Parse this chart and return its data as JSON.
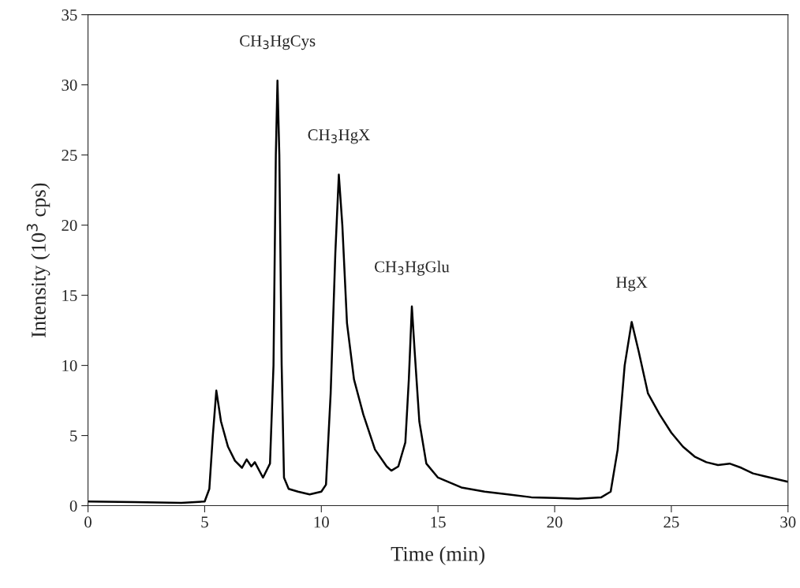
{
  "chart_data": {
    "type": "line",
    "xlabel": "Time (min)",
    "ylabel": "Intensity (10$^{3}$ cps)",
    "x": [
      0,
      2,
      4,
      5.0,
      5.2,
      5.35,
      5.5,
      5.7,
      6.0,
      6.3,
      6.6,
      6.8,
      7.0,
      7.15,
      7.5,
      7.8,
      7.95,
      8.05,
      8.12,
      8.2,
      8.3,
      8.4,
      8.6,
      9.0,
      9.5,
      10.0,
      10.2,
      10.4,
      10.6,
      10.75,
      10.9,
      11.1,
      11.4,
      11.8,
      12.3,
      12.8,
      13.0,
      13.3,
      13.6,
      13.75,
      13.88,
      14.0,
      14.2,
      14.5,
      15.0,
      16,
      17,
      18,
      19,
      20,
      21,
      22,
      22.4,
      22.7,
      23.0,
      23.3,
      23.6,
      24.0,
      24.5,
      25.0,
      25.5,
      26,
      26.5,
      27,
      27.5,
      28,
      28.5,
      29,
      29.5,
      30
    ],
    "series": [
      {
        "color": "#000000",
        "values": [
          0.3,
          0.25,
          0.2,
          0.3,
          1.2,
          5,
          8.2,
          6,
          4.2,
          3.2,
          2.7,
          3.3,
          2.8,
          3.1,
          2.0,
          3,
          10,
          25,
          30.3,
          25,
          10,
          2,
          1.2,
          1.0,
          0.8,
          1.0,
          1.5,
          8,
          18,
          23.6,
          20,
          13,
          9,
          6.5,
          4,
          2.8,
          2.5,
          2.8,
          4.5,
          9,
          14.2,
          11,
          6,
          3,
          2,
          1.3,
          1.0,
          0.8,
          0.6,
          0.55,
          0.5,
          0.6,
          1,
          4,
          10,
          13.1,
          11,
          8,
          6.5,
          5.2,
          4.2,
          3.5,
          3.1,
          2.9,
          3.0,
          2.7,
          2.3,
          2.1,
          1.9,
          1.7
        ]
      }
    ],
    "xlim": [
      0,
      30
    ],
    "xticks": [
      0,
      5,
      10,
      15,
      20,
      25,
      30
    ],
    "ylim": [
      0,
      35
    ],
    "yticks": [
      0,
      5,
      10,
      15,
      20,
      25,
      30,
      35
    ],
    "grid": false,
    "legend": false,
    "marker": "none",
    "line_style": "solid",
    "annotations": [
      {
        "text": "CH$_{3}$HgCys",
        "x": 8.12,
        "y": 30.3
      },
      {
        "text": "CH$_{3}$HgX",
        "x": 10.75,
        "y": 23.6
      },
      {
        "text": "CH$_{3}$HgGlu",
        "x": 13.88,
        "y": 14.2
      },
      {
        "text": "HgX",
        "x": 23.3,
        "y": 13.1
      }
    ]
  }
}
